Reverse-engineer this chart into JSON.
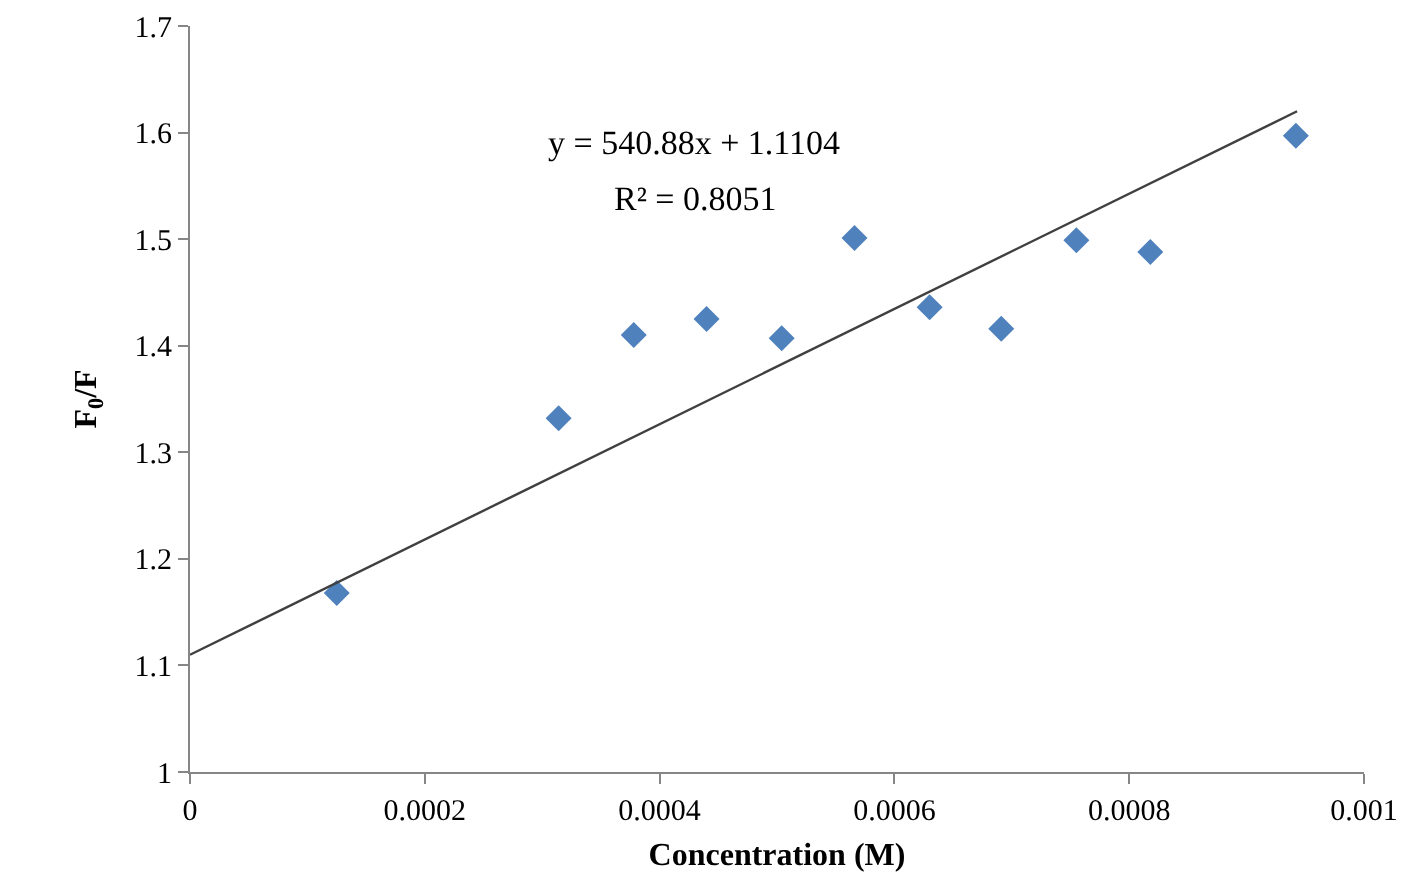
{
  "chart_data": {
    "type": "scatter",
    "xlabel": "Concentration (M)",
    "ylabel": "F$_{0}$/F",
    "series": [
      {
        "color": "#4f81bd",
        "x": [
          0.000125,
          0.000314,
          0.000378,
          0.00044,
          0.000504,
          0.000566,
          0.00063,
          0.000691,
          0.000755,
          0.000818,
          0.000942
        ],
        "values": [
          1.168,
          1.332,
          1.41,
          1.425,
          1.407,
          1.501,
          1.436,
          1.416,
          1.499,
          1.488,
          1.597
        ]
      },
      {
        "type": "line",
        "color": "#404040",
        "marker": "none",
        "x": [
          0,
          0.000943
        ],
        "values": [
          1.11,
          1.62
        ]
      }
    ],
    "marker": "diamond",
    "annotations": [
      "y = 540.88x + 1.1104",
      "R² = 0.8051"
    ],
    "xlim": [
      0,
      0.001
    ],
    "xticks": [
      0,
      0.0002,
      0.0004,
      0.0006,
      0.0008,
      0.001
    ],
    "ylim": [
      1,
      1.7
    ],
    "yticks": [
      1,
      1.1,
      1.2,
      1.3,
      1.4,
      1.5,
      1.6,
      1.7
    ],
    "grid": false
  }
}
